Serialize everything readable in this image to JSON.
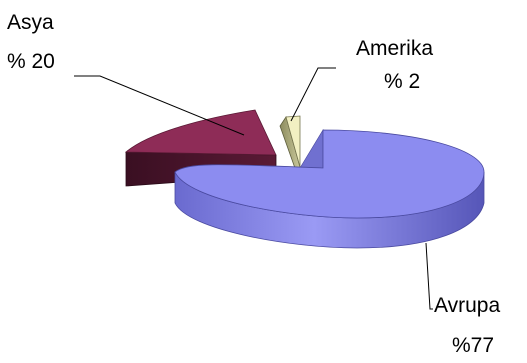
{
  "chart_data": {
    "type": "pie",
    "variant": "3d-exploded",
    "title": "",
    "slices": [
      {
        "label": "Avrupa",
        "value_text": "%77",
        "value": 77,
        "color": "#8C8CF0"
      },
      {
        "label": "Asya",
        "value_text": "% 20",
        "value": 20,
        "color": "#8E2C57"
      },
      {
        "label": "Amerika",
        "value_text": "% 2",
        "value": 2,
        "color": "#F2F0C2"
      }
    ],
    "legend": "none"
  }
}
